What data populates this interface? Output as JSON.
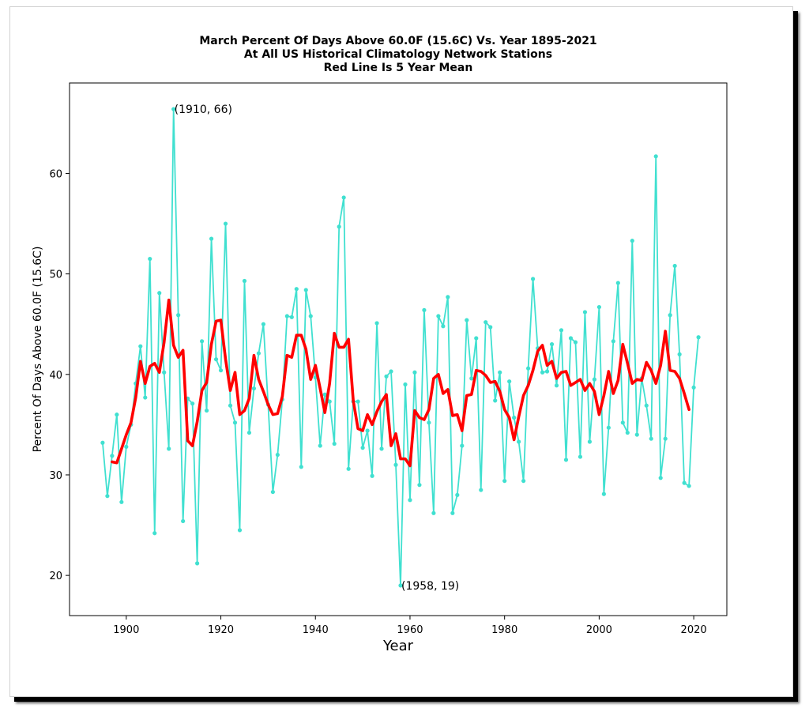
{
  "chart_data": {
    "type": "line",
    "title_lines": [
      "March Percent Of Days Above 60.0F (15.6C) Vs. Year 1895-2021",
      "At All US Historical Climatology Network Stations",
      "Red Line Is 5 Year Mean"
    ],
    "xlabel": "Year",
    "ylabel": "Percent Of Days Above 60.0F (15.6C)",
    "xlim": [
      1888,
      2027
    ],
    "ylim": [
      16,
      69
    ],
    "xticks": [
      1900,
      1920,
      1940,
      1960,
      1980,
      2000,
      2020
    ],
    "yticks": [
      20,
      30,
      40,
      50,
      60
    ],
    "grid": false,
    "colors": {
      "series": "#40e0d0",
      "mean": "#ff0000"
    },
    "series": [
      {
        "x": [
          1895,
          1896,
          1897,
          1898,
          1899,
          1900,
          1901,
          1902,
          1903,
          1904,
          1905,
          1906,
          1907,
          1908,
          1909,
          1910,
          1911,
          1912,
          1913,
          1914,
          1915,
          1916,
          1917,
          1918,
          1919,
          1920,
          1921,
          1922,
          1923,
          1924,
          1925,
          1926,
          1927,
          1928,
          1929,
          1930,
          1931,
          1932,
          1933,
          1934,
          1935,
          1936,
          1937,
          1938,
          1939,
          1940,
          1941,
          1942,
          1943,
          1944,
          1945,
          1946,
          1947,
          1948,
          1949,
          1950,
          1951,
          1952,
          1953,
          1954,
          1955,
          1956,
          1957,
          1958,
          1959,
          1960,
          1961,
          1962,
          1963,
          1964,
          1965,
          1966,
          1967,
          1968,
          1969,
          1970,
          1971,
          1972,
          1973,
          1974,
          1975,
          1976,
          1977,
          1978,
          1979,
          1980,
          1981,
          1982,
          1983,
          1984,
          1985,
          1986,
          1987,
          1988,
          1989,
          1990,
          1991,
          1992,
          1993,
          1994,
          1995,
          1996,
          1997,
          1998,
          1999,
          2000,
          2001,
          2002,
          2003,
          2004,
          2005,
          2006,
          2007,
          2008,
          2009,
          2010,
          2011,
          2012,
          2013,
          2014,
          2015,
          2016,
          2017,
          2018,
          2019,
          2020,
          2021
        ],
        "values": [
          33.2,
          27.9,
          31.9,
          36.0,
          27.3,
          32.8,
          35.0,
          39.1,
          42.8,
          37.7,
          51.5,
          24.2,
          48.1,
          40.2,
          32.6,
          66.4,
          45.9,
          25.4,
          37.6,
          37.1,
          21.2,
          43.3,
          36.4,
          53.5,
          41.5,
          40.4,
          55.0,
          36.9,
          35.2,
          24.5,
          49.3,
          34.2,
          38.6,
          42.1,
          45.0,
          37.0,
          28.3,
          32.0,
          37.5,
          45.8,
          45.7,
          48.5,
          30.8,
          48.4,
          45.8,
          39.7,
          32.9,
          38.0,
          37.3,
          33.1,
          54.7,
          57.6,
          30.6,
          37.3,
          37.3,
          32.7,
          34.4,
          29.9,
          45.1,
          32.6,
          39.8,
          40.3,
          31.0,
          19.0,
          39.0,
          27.5,
          40.2,
          29.0,
          46.4,
          35.2,
          26.2,
          45.8,
          44.8,
          47.7,
          26.2,
          28.0,
          32.9,
          45.4,
          39.6,
          43.6,
          28.5,
          45.2,
          44.7,
          37.4,
          40.2,
          29.4,
          39.3,
          35.7,
          33.3,
          29.4,
          40.6,
          49.5,
          42.6,
          40.2,
          40.3,
          43.0,
          38.9,
          44.4,
          31.5,
          43.6,
          43.2,
          31.8,
          46.2,
          33.3,
          39.5,
          46.7,
          28.1,
          34.7,
          43.3,
          49.1,
          35.2,
          34.2,
          53.3,
          34.0,
          39.6,
          36.9,
          33.6,
          61.7,
          29.7,
          33.6,
          45.9,
          50.8,
          42.0,
          29.2,
          28.9,
          38.7,
          43.7
        ]
      },
      {
        "name": "5 Year Mean",
        "x": [
          1897,
          1898,
          1899,
          1900,
          1901,
          1902,
          1903,
          1904,
          1905,
          1906,
          1907,
          1908,
          1909,
          1910,
          1911,
          1912,
          1913,
          1914,
          1915,
          1916,
          1917,
          1918,
          1919,
          1920,
          1921,
          1922,
          1923,
          1924,
          1925,
          1926,
          1927,
          1928,
          1929,
          1930,
          1931,
          1932,
          1933,
          1934,
          1935,
          1936,
          1937,
          1938,
          1939,
          1940,
          1941,
          1942,
          1943,
          1944,
          1945,
          1946,
          1947,
          1948,
          1949,
          1950,
          1951,
          1952,
          1953,
          1954,
          1955,
          1956,
          1957,
          1958,
          1959,
          1960,
          1961,
          1962,
          1963,
          1964,
          1965,
          1966,
          1967,
          1968,
          1969,
          1970,
          1971,
          1972,
          1973,
          1974,
          1975,
          1976,
          1977,
          1978,
          1979,
          1980,
          1981,
          1982,
          1983,
          1984,
          1985,
          1986,
          1987,
          1988,
          1989,
          1990,
          1991,
          1992,
          1993,
          1994,
          1995,
          1996,
          1997,
          1998,
          1999,
          2000,
          2001,
          2002,
          2003,
          2004,
          2005,
          2006,
          2007,
          2008,
          2009,
          2010,
          2011,
          2012,
          2013,
          2014,
          2015,
          2016,
          2017,
          2018,
          2019
        ],
        "values": [
          31.3,
          31.2,
          32.6,
          34.0,
          35.2,
          37.7,
          41.3,
          39.1,
          40.8,
          41.1,
          40.2,
          43.2,
          47.4,
          42.9,
          41.7,
          42.4,
          33.4,
          32.9,
          35.3,
          38.4,
          39.2,
          43.0,
          45.3,
          45.4,
          41.5,
          38.4,
          40.2,
          36.0,
          36.4,
          37.6,
          41.9,
          39.5,
          38.3,
          37.0,
          36.0,
          36.1,
          37.8,
          41.9,
          41.7,
          43.9,
          43.9,
          42.5,
          39.5,
          40.9,
          38.6,
          36.2,
          39.1,
          44.1,
          42.7,
          42.7,
          43.5,
          37.4,
          34.6,
          34.4,
          36.0,
          35.0,
          36.3,
          37.3,
          38.0,
          32.9,
          34.1,
          31.6,
          31.6,
          30.9,
          36.4,
          35.7,
          35.5,
          36.5,
          39.6,
          40.0,
          38.1,
          38.5,
          35.9,
          36.0,
          34.4,
          37.9,
          38.0,
          40.4,
          40.3,
          39.9,
          39.2,
          39.3,
          38.3,
          36.5,
          35.7,
          33.5,
          35.8,
          37.9,
          38.9,
          40.4,
          42.3,
          42.9,
          40.9,
          41.3,
          39.6,
          40.2,
          40.3,
          38.9,
          39.2,
          39.5,
          38.4,
          39.1,
          38.3,
          36.0,
          37.9,
          40.3,
          38.1,
          39.4,
          43.0,
          41.1,
          39.1,
          39.5,
          39.4,
          41.2,
          40.4,
          39.1,
          40.9,
          44.3,
          40.4,
          40.3,
          39.6,
          38.1,
          36.5
        ]
      }
    ],
    "annotations": [
      {
        "label": "(1910, 66)",
        "x": 1910,
        "y": 66.4
      },
      {
        "label": "(1958, 19)",
        "x": 1958,
        "y": 19.0
      }
    ]
  }
}
